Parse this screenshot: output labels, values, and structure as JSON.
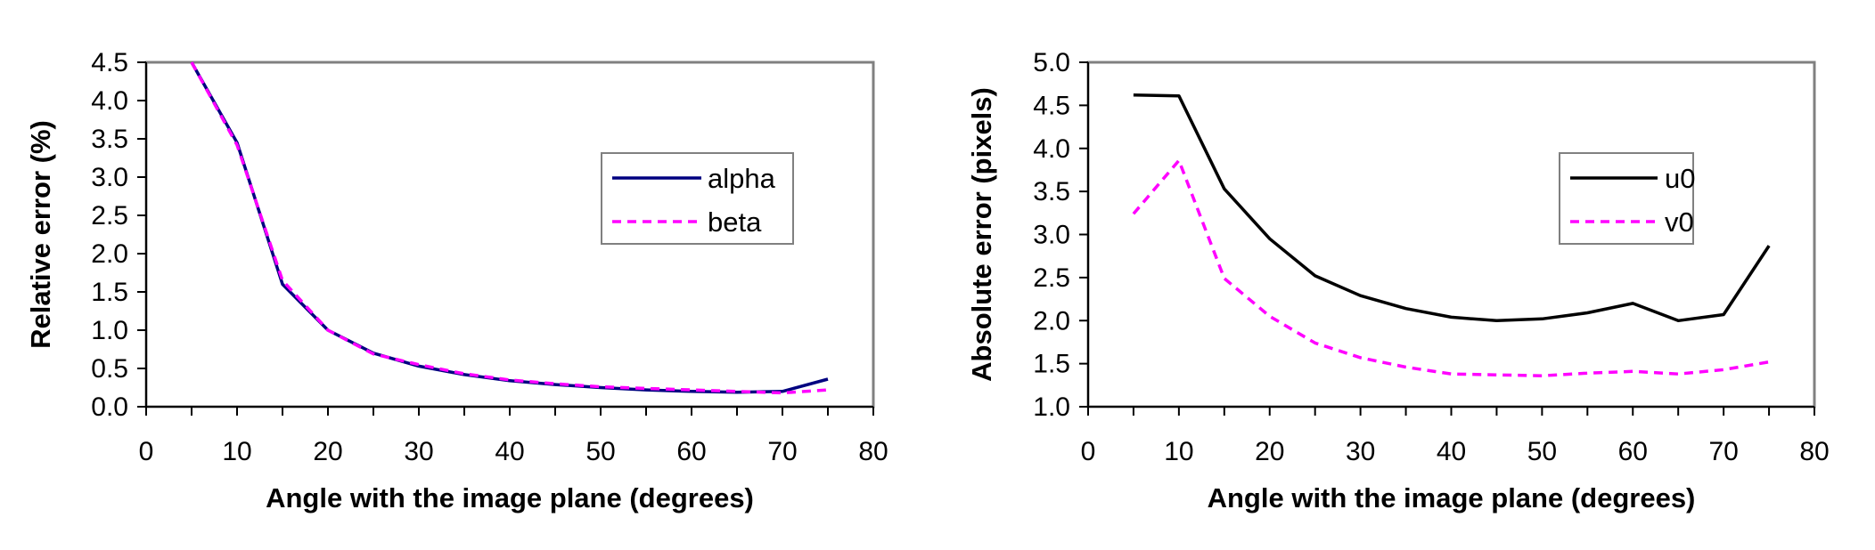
{
  "chart_data": [
    {
      "type": "line",
      "title": "",
      "xlabel": "Angle with the image plane (degrees)",
      "ylabel": "Relative error (%)",
      "xlim": [
        0,
        80
      ],
      "ylim": [
        0,
        4.5
      ],
      "xticks": [
        "0",
        "10",
        "20",
        "30",
        "40",
        "50",
        "60",
        "70",
        "80"
      ],
      "yticks": [
        "0.0",
        "0.5",
        "1.0",
        "1.5",
        "2.0",
        "2.5",
        "3.0",
        "3.5",
        "4.0",
        "4.5"
      ],
      "grid": false,
      "legend_position": "right-middle",
      "x": [
        5,
        10,
        15,
        20,
        25,
        30,
        35,
        40,
        45,
        50,
        55,
        60,
        65,
        70,
        75
      ],
      "series": [
        {
          "name": "alpha",
          "color": "#000080",
          "style": "solid",
          "values": [
            4.5,
            3.45,
            1.6,
            1.0,
            0.7,
            0.53,
            0.42,
            0.34,
            0.29,
            0.25,
            0.22,
            0.2,
            0.19,
            0.2,
            0.36
          ]
        },
        {
          "name": "beta",
          "color": "#ff00ff",
          "style": "dashed",
          "values": [
            4.5,
            3.42,
            1.65,
            1.0,
            0.69,
            0.55,
            0.43,
            0.35,
            0.3,
            0.26,
            0.24,
            0.22,
            0.2,
            0.18,
            0.22
          ]
        }
      ]
    },
    {
      "type": "line",
      "title": "",
      "xlabel": "Angle with the image plane (degrees)",
      "ylabel": "Absolute error (pixels)",
      "xlim": [
        0,
        80
      ],
      "ylim": [
        1.0,
        5.0
      ],
      "xticks": [
        "0",
        "10",
        "20",
        "30",
        "40",
        "50",
        "60",
        "70",
        "80"
      ],
      "yticks": [
        "1.0",
        "1.5",
        "2.0",
        "2.5",
        "3.0",
        "3.5",
        "4.0",
        "4.5",
        "5.0"
      ],
      "grid": false,
      "legend_position": "top-right",
      "x": [
        5,
        10,
        15,
        20,
        25,
        30,
        35,
        40,
        45,
        50,
        55,
        60,
        65,
        70,
        75
      ],
      "series": [
        {
          "name": "u0",
          "color": "#000000",
          "style": "solid",
          "values": [
            4.62,
            4.61,
            3.53,
            2.95,
            2.52,
            2.29,
            2.14,
            2.04,
            2.0,
            2.02,
            2.09,
            2.2,
            2.0,
            2.07,
            2.87
          ]
        },
        {
          "name": "v0",
          "color": "#ff00ff",
          "style": "dashed",
          "values": [
            3.24,
            3.86,
            2.49,
            2.05,
            1.74,
            1.57,
            1.46,
            1.38,
            1.37,
            1.36,
            1.39,
            1.41,
            1.38,
            1.43,
            1.52
          ]
        }
      ]
    }
  ]
}
